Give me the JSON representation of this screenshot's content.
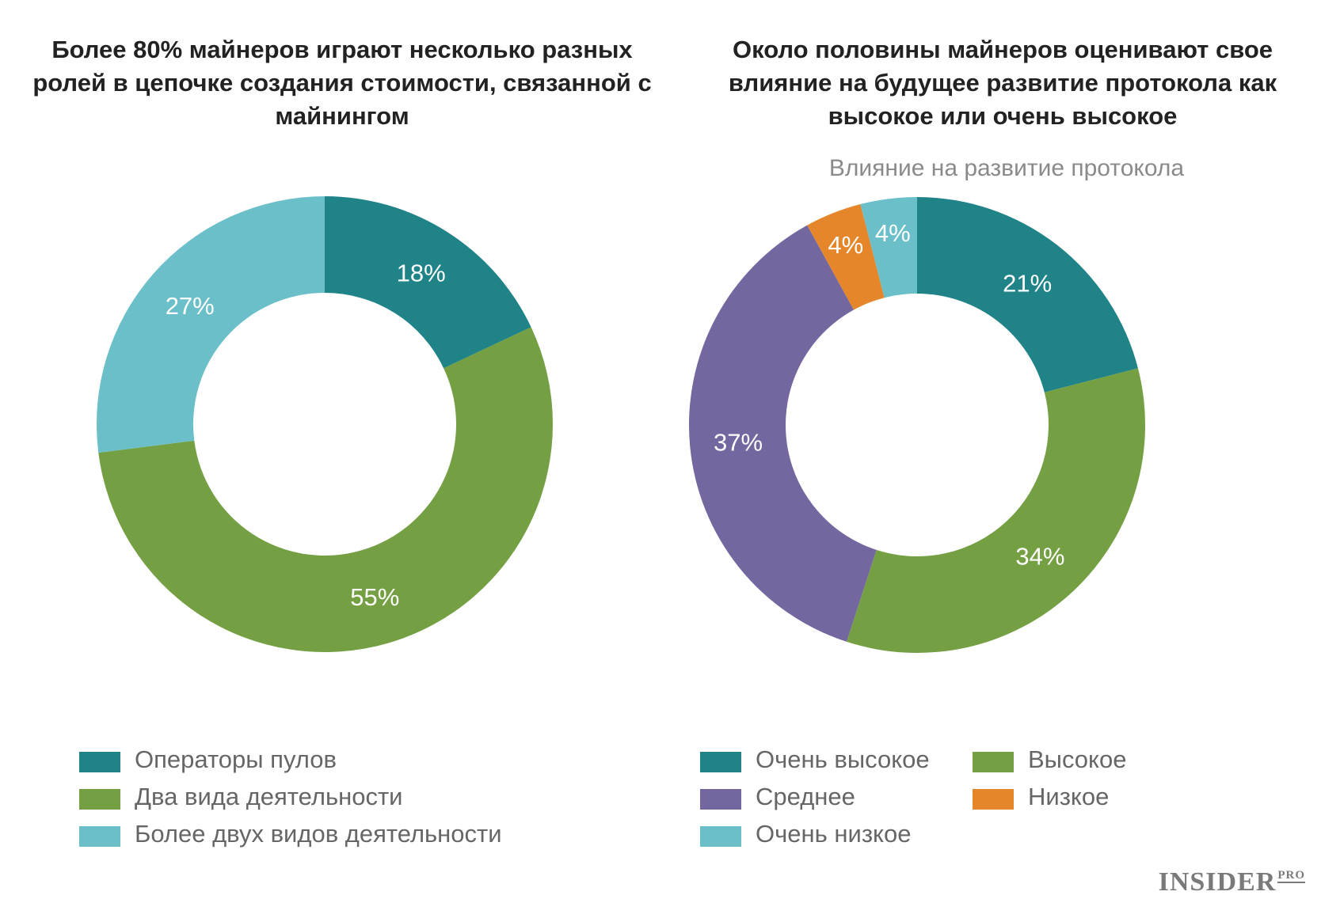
{
  "chart_data": [
    {
      "type": "pie",
      "title": "Более 80% майнеров играют несколько разных ролей в цепочке создания стоимости, связанной с майнингом",
      "subtitle": "",
      "categories": [
        "Операторы пулов",
        "Два вида деятельности",
        "Более двух видов деятельности"
      ],
      "values": [
        18,
        55,
        27
      ],
      "labels": [
        "18%",
        "55%",
        "27%"
      ],
      "colors": [
        "#1f8388",
        "#74a043",
        "#6abfc9"
      ],
      "legend_position": "bottom"
    },
    {
      "type": "pie",
      "title": "Около половины майнеров оценивают свое влияние на будущее развитие протокола как высокое или очень высокое",
      "subtitle": "Влияние на развитие протокола",
      "categories": [
        "Очень высокое",
        "Высокое",
        "Среднее",
        "Низкое",
        "Очень низкое"
      ],
      "values": [
        21,
        34,
        37,
        4,
        4
      ],
      "labels": [
        "21%",
        "34%",
        "37%",
        "4%",
        "4%"
      ],
      "colors": [
        "#1f8388",
        "#74a043",
        "#74669e",
        "#e5862a",
        "#6abfc9"
      ],
      "legend_position": "bottom"
    }
  ],
  "logo": {
    "main": "INSIDER",
    "suffix": "PRO"
  }
}
